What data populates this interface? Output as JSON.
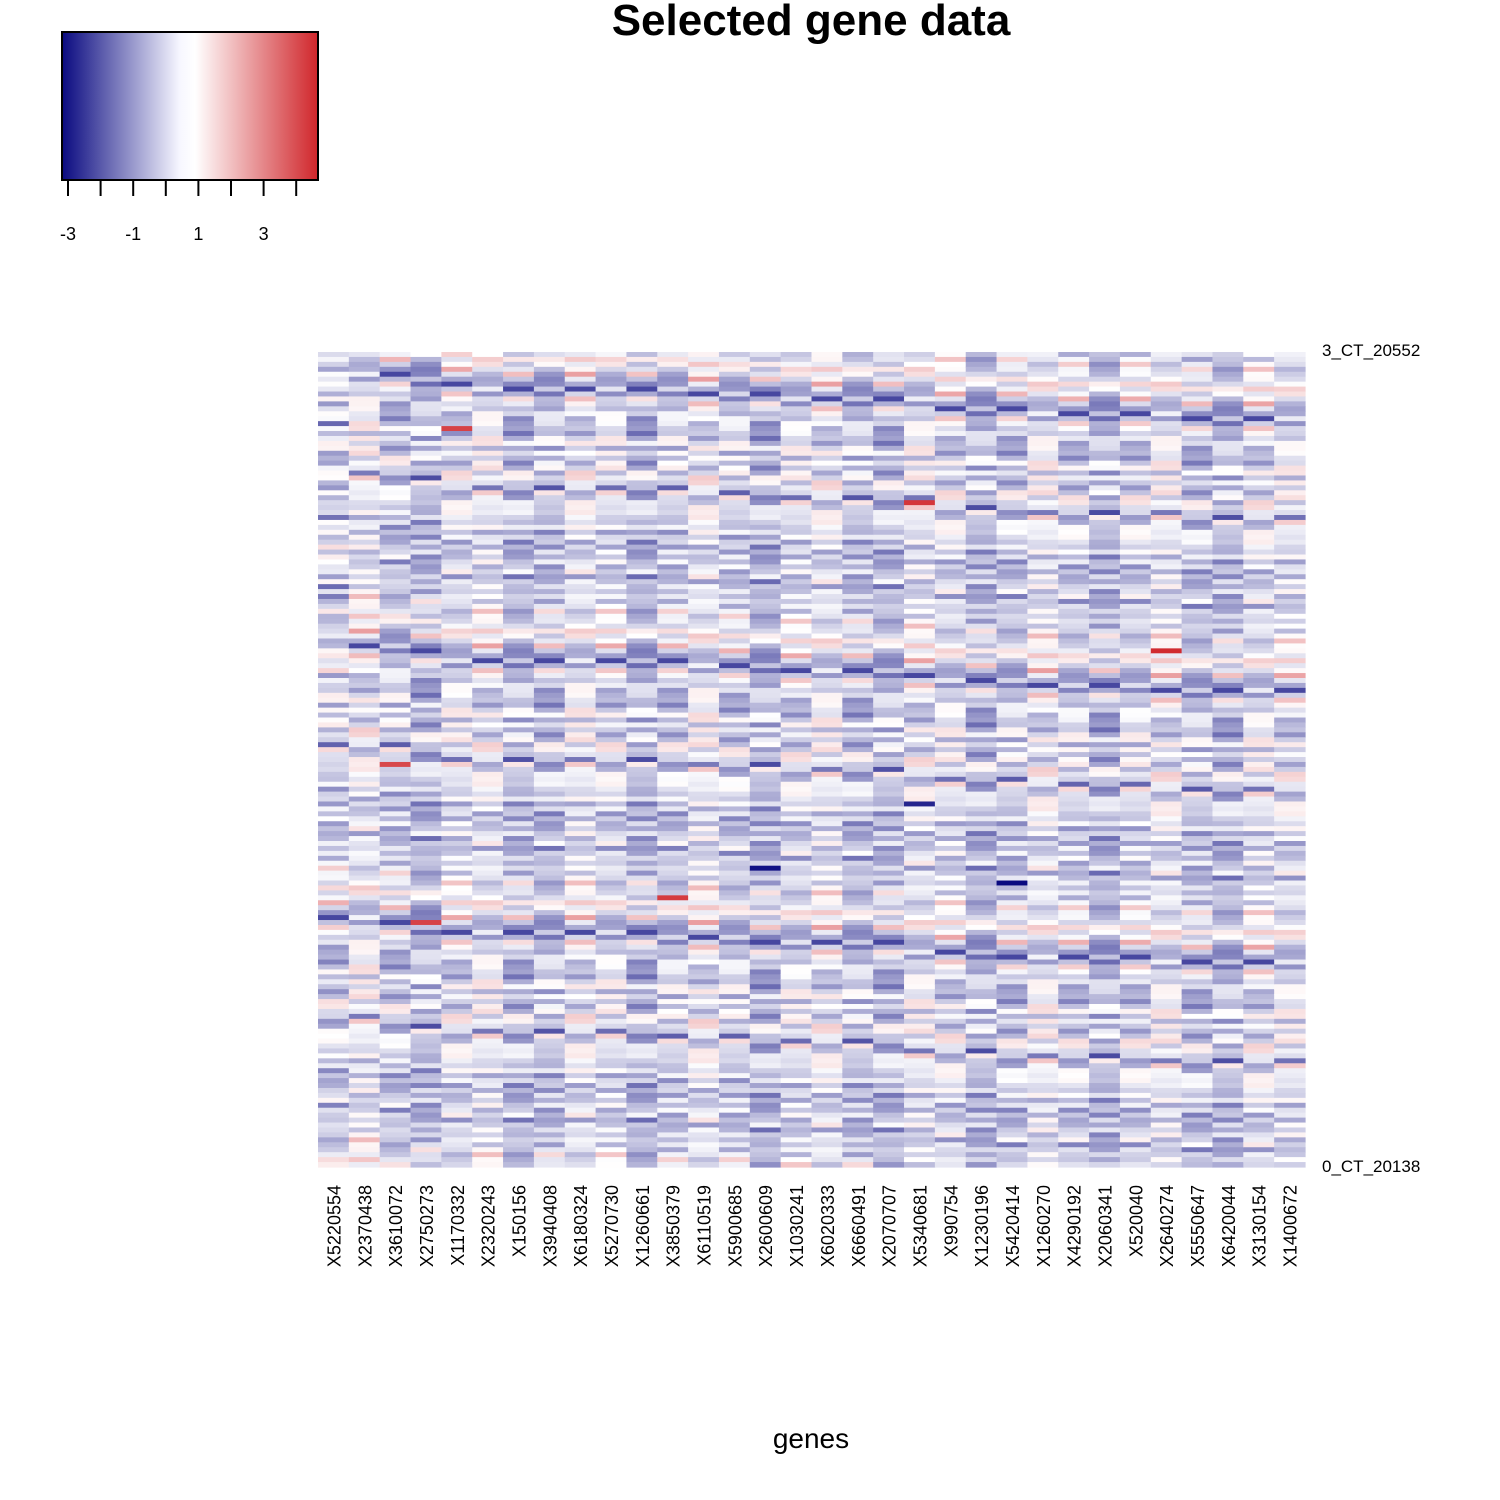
{
  "chart_data": {
    "type": "heatmap",
    "title": "Selected gene data",
    "xlabel": "genes",
    "ylabel": "",
    "columns": [
      "X5220554",
      "X2370438",
      "X3610072",
      "X2750273",
      "X1170332",
      "X2320243",
      "X150156",
      "X3940408",
      "X6180324",
      "X5270730",
      "X1260661",
      "X3850379",
      "X6110519",
      "X5900685",
      "X2600609",
      "X1030241",
      "X6020333",
      "X6660491",
      "X2070707",
      "X5340681",
      "X990754",
      "X1230196",
      "X5420414",
      "X1260270",
      "X4290192",
      "X2060341",
      "X520040",
      "X2640274",
      "X5550647",
      "X6420044",
      "X3130154",
      "X1400672"
    ],
    "rows_first_label": "3_CT_20552",
    "rows_last_label": "0_CT_20138",
    "row_count": 165,
    "value_range": [
      -3.6,
      4.0
    ],
    "colorbar": {
      "colors": [
        "#0a0a80",
        "#f7f7ff",
        "#ffffff",
        "#d0262b"
      ],
      "tick_values": [
        -3,
        -2,
        -1,
        0,
        1,
        2,
        3,
        4
      ],
      "tick_labels": [
        "-3",
        "-1",
        "1",
        "3"
      ]
    },
    "highlights": [
      {
        "column": "X2600609",
        "row_from_top": 104,
        "value": -3.5
      },
      {
        "column": "X5420414",
        "row_from_top": 107,
        "value": -3.6
      },
      {
        "column": "X5340681",
        "row_from_top": 91,
        "value": -3.2
      },
      {
        "column": "X2640274",
        "row_from_top": 60,
        "value": 3.9
      },
      {
        "column": "X5340681",
        "row_from_top": 30,
        "value": 3.7
      },
      {
        "column": "X3850379",
        "row_from_top": 110,
        "value": 3.6
      },
      {
        "column": "X1170332",
        "row_from_top": 15,
        "value": 3.5
      },
      {
        "column": "X2750273",
        "row_from_top": 115,
        "value": 3.5
      },
      {
        "column": "X3610072",
        "row_from_top": 83,
        "value": 3.4
      }
    ]
  }
}
